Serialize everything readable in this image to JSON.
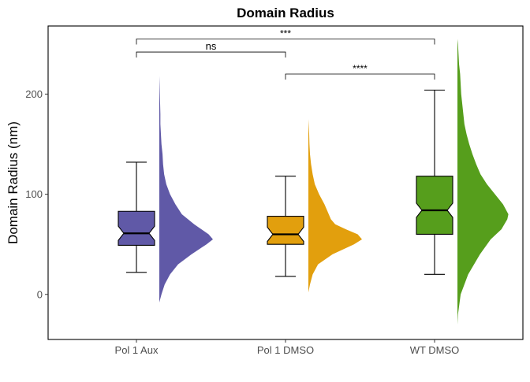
{
  "chart_data": {
    "type": "box-violin",
    "title": "Domain Radius",
    "ylabel": "Domain Radius (nm)",
    "xlabel": "",
    "ylim": [
      -45,
      268
    ],
    "yticks": [
      0,
      100,
      200
    ],
    "categories": [
      "Pol 1 Aux",
      "Pol 1 DMSO",
      "WT DMSO"
    ],
    "colors": [
      "#6059a7",
      "#e29f0d",
      "#569e1c"
    ],
    "boxes": [
      {
        "category": "Pol 1 Aux",
        "whisker_low": 22,
        "q1": 49,
        "median": 61,
        "q3": 83,
        "whisker_high": 132
      },
      {
        "category": "Pol 1 DMSO",
        "whisker_low": 18,
        "q1": 50,
        "median": 60,
        "q3": 78,
        "whisker_high": 118
      },
      {
        "category": "WT DMSO",
        "whisker_low": 20,
        "q1": 60,
        "median": 84,
        "q3": 118,
        "whisker_high": 204
      }
    ],
    "densities": [
      {
        "category": "Pol 1 Aux",
        "profile": [
          [
            -8,
            0
          ],
          [
            0,
            0.04
          ],
          [
            10,
            0.1
          ],
          [
            20,
            0.2
          ],
          [
            30,
            0.35
          ],
          [
            40,
            0.6
          ],
          [
            50,
            0.88
          ],
          [
            55,
            1.0
          ],
          [
            60,
            0.92
          ],
          [
            70,
            0.65
          ],
          [
            80,
            0.42
          ],
          [
            90,
            0.3
          ],
          [
            100,
            0.2
          ],
          [
            110,
            0.13
          ],
          [
            120,
            0.09
          ],
          [
            130,
            0.07
          ],
          [
            140,
            0.06
          ],
          [
            150,
            0.04
          ],
          [
            160,
            0.03
          ],
          [
            170,
            0.02
          ],
          [
            180,
            0.02
          ],
          [
            190,
            0.015
          ],
          [
            200,
            0.01
          ],
          [
            210,
            0.005
          ],
          [
            218,
            0
          ]
        ]
      },
      {
        "category": "Pol 1 DMSO",
        "profile": [
          [
            2,
            0
          ],
          [
            10,
            0.03
          ],
          [
            20,
            0.08
          ],
          [
            30,
            0.18
          ],
          [
            40,
            0.45
          ],
          [
            50,
            0.85
          ],
          [
            55,
            1.0
          ],
          [
            60,
            0.92
          ],
          [
            65,
            0.7
          ],
          [
            70,
            0.5
          ],
          [
            75,
            0.42
          ],
          [
            80,
            0.38
          ],
          [
            90,
            0.3
          ],
          [
            100,
            0.2
          ],
          [
            110,
            0.12
          ],
          [
            120,
            0.08
          ],
          [
            130,
            0.05
          ],
          [
            140,
            0.03
          ],
          [
            150,
            0.02
          ],
          [
            160,
            0.015
          ],
          [
            170,
            0.005
          ],
          [
            175,
            0
          ]
        ]
      },
      {
        "category": "WT DMSO",
        "profile": [
          [
            -30,
            0
          ],
          [
            -20,
            0.01
          ],
          [
            0,
            0.06
          ],
          [
            20,
            0.2
          ],
          [
            40,
            0.42
          ],
          [
            55,
            0.62
          ],
          [
            65,
            0.82
          ],
          [
            75,
            0.93
          ],
          [
            80,
            0.95
          ],
          [
            90,
            0.85
          ],
          [
            100,
            0.7
          ],
          [
            110,
            0.55
          ],
          [
            120,
            0.43
          ],
          [
            130,
            0.35
          ],
          [
            140,
            0.28
          ],
          [
            150,
            0.22
          ],
          [
            160,
            0.17
          ],
          [
            170,
            0.13
          ],
          [
            180,
            0.11
          ],
          [
            190,
            0.09
          ],
          [
            200,
            0.07
          ],
          [
            210,
            0.06
          ],
          [
            220,
            0.05
          ],
          [
            230,
            0.03
          ],
          [
            240,
            0.02
          ],
          [
            250,
            0.01
          ],
          [
            255,
            0
          ]
        ]
      }
    ],
    "brackets": [
      {
        "from": "Pol 1 Aux",
        "to": "WT DMSO",
        "y": 255,
        "label": "***"
      },
      {
        "from": "Pol 1 Aux",
        "to": "Pol 1 DMSO",
        "y": 242,
        "label": "ns"
      },
      {
        "from": "Pol 1 DMSO",
        "to": "WT DMSO",
        "y": 220,
        "label": "****"
      }
    ]
  }
}
